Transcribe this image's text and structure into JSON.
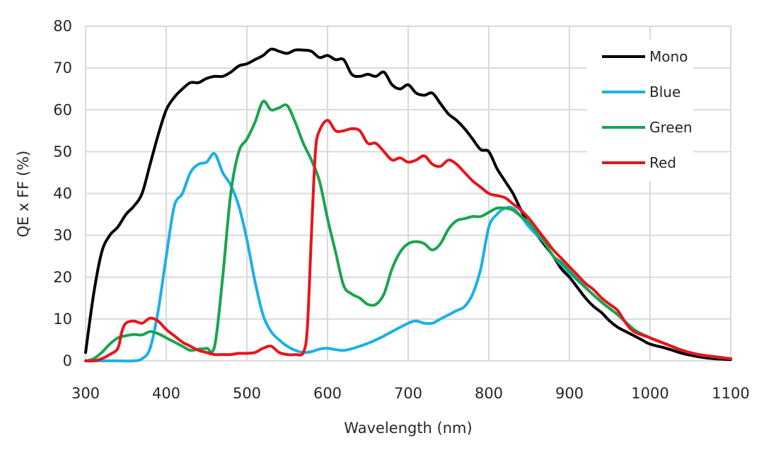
{
  "chart_data": {
    "type": "line",
    "title": "",
    "xlabel": "Wavelength (nm)",
    "ylabel": "QE x FF (%)",
    "xlim": [
      300,
      1100
    ],
    "ylim": [
      0,
      80
    ],
    "xticks": [
      300,
      400,
      500,
      600,
      700,
      800,
      900,
      1000,
      1100
    ],
    "yticks": [
      0,
      10,
      20,
      30,
      40,
      50,
      60,
      70,
      80
    ],
    "xtick_labels": [
      "300",
      "400",
      "500",
      "600",
      "700",
      "800",
      "900",
      "1000",
      "1100"
    ],
    "ytick_labels": [
      "0",
      "10",
      "20",
      "30",
      "40",
      "50",
      "60",
      "70",
      "80"
    ],
    "grid": true,
    "legend_position": "top-right",
    "series": [
      {
        "name": "Mono",
        "color": "#000000",
        "x": [
          300,
          310,
          320,
          330,
          340,
          350,
          360,
          370,
          380,
          390,
          400,
          410,
          420,
          430,
          440,
          450,
          460,
          470,
          480,
          490,
          500,
          510,
          520,
          530,
          540,
          550,
          560,
          570,
          580,
          590,
          600,
          610,
          620,
          630,
          640,
          650,
          660,
          670,
          680,
          690,
          700,
          710,
          720,
          730,
          740,
          750,
          760,
          770,
          780,
          790,
          800,
          810,
          820,
          830,
          840,
          850,
          860,
          870,
          880,
          890,
          900,
          910,
          920,
          930,
          940,
          950,
          960,
          970,
          980,
          990,
          1000,
          1020,
          1040,
          1060,
          1080,
          1100
        ],
        "y": [
          2,
          16,
          26,
          30,
          32,
          35,
          37,
          40,
          47,
          54,
          60,
          63,
          65,
          66.5,
          66.5,
          67.5,
          68,
          68,
          69,
          70.5,
          71,
          72,
          73,
          74.5,
          74,
          73.5,
          74.3,
          74.3,
          74,
          72.5,
          73,
          72,
          72,
          68.5,
          68,
          68.5,
          68,
          69,
          66,
          65,
          66,
          64,
          63.5,
          64,
          61.5,
          59,
          57.5,
          55.5,
          53,
          50.5,
          50,
          46,
          43,
          40,
          36,
          32.5,
          30,
          27.5,
          25,
          22,
          20,
          17.5,
          15,
          13,
          11.5,
          9.5,
          8,
          7,
          6,
          5,
          4,
          3,
          1.8,
          1,
          0.5,
          0.3
        ]
      },
      {
        "name": "Blue",
        "color": "#1cb0e8",
        "x": [
          300,
          320,
          340,
          360,
          370,
          380,
          390,
          400,
          410,
          420,
          430,
          440,
          450,
          460,
          470,
          480,
          490,
          500,
          510,
          520,
          530,
          540,
          550,
          560,
          570,
          580,
          590,
          600,
          620,
          640,
          660,
          680,
          700,
          710,
          720,
          730,
          740,
          750,
          760,
          770,
          780,
          790,
          800,
          810,
          820,
          830,
          840,
          850,
          860,
          870,
          880,
          890,
          900,
          920,
          940,
          960,
          980,
          1000,
          1020,
          1040,
          1060,
          1080,
          1100
        ],
        "y": [
          0,
          0,
          0,
          0,
          0.5,
          3,
          12,
          25,
          37,
          40,
          45,
          47,
          47.5,
          49.5,
          45,
          42,
          37,
          29,
          19,
          11,
          7,
          5,
          3.5,
          2.5,
          2,
          2.2,
          2.8,
          3,
          2.5,
          3.5,
          5,
          7,
          9,
          9.5,
          9,
          9,
          10,
          11,
          12,
          13,
          16,
          22,
          32,
          35,
          36.5,
          36.5,
          34.5,
          32,
          30,
          28,
          25,
          23,
          21,
          17.5,
          14,
          11,
          7.5,
          5.5,
          4,
          2.5,
          1.5,
          1,
          0.5
        ]
      },
      {
        "name": "Green",
        "color": "#1aa450",
        "x": [
          300,
          310,
          320,
          330,
          340,
          350,
          360,
          370,
          380,
          390,
          400,
          410,
          420,
          430,
          440,
          450,
          460,
          470,
          480,
          490,
          500,
          510,
          520,
          530,
          540,
          550,
          560,
          570,
          580,
          590,
          600,
          610,
          620,
          630,
          640,
          650,
          660,
          670,
          680,
          690,
          700,
          710,
          720,
          730,
          740,
          750,
          760,
          770,
          780,
          790,
          800,
          810,
          820,
          830,
          840,
          850,
          860,
          870,
          880,
          890,
          900,
          920,
          940,
          960,
          980,
          1000,
          1020,
          1040,
          1060,
          1080,
          1100
        ],
        "y": [
          0,
          0.5,
          2,
          4,
          5.5,
          6,
          6.3,
          6.2,
          7,
          6.5,
          5.5,
          4.5,
          3.5,
          2.5,
          2.8,
          3,
          3.5,
          20,
          40,
          50,
          53,
          57,
          62,
          60,
          60.5,
          61,
          57,
          52,
          48,
          43,
          34,
          26,
          18,
          16,
          15,
          13.5,
          13.5,
          16,
          22,
          26,
          28,
          28.5,
          28,
          26.5,
          28,
          31.5,
          33.5,
          34,
          34.5,
          34.5,
          35.5,
          36.5,
          36.5,
          36,
          34.5,
          33,
          30.5,
          28,
          25,
          23.5,
          21.5,
          17.5,
          14,
          11,
          7.5,
          5.5,
          4,
          2.5,
          1.5,
          1,
          0.5
        ]
      },
      {
        "name": "Red",
        "color": "#e8141c",
        "x": [
          300,
          310,
          320,
          330,
          340,
          345,
          350,
          360,
          370,
          380,
          390,
          400,
          410,
          420,
          430,
          440,
          450,
          460,
          470,
          480,
          490,
          500,
          510,
          520,
          530,
          540,
          550,
          560,
          570,
          575,
          580,
          585,
          590,
          600,
          610,
          620,
          630,
          640,
          650,
          660,
          670,
          680,
          690,
          700,
          710,
          720,
          730,
          740,
          750,
          760,
          770,
          780,
          790,
          800,
          810,
          820,
          830,
          840,
          850,
          860,
          870,
          880,
          890,
          900,
          910,
          920,
          930,
          940,
          950,
          960,
          970,
          980,
          1000,
          1020,
          1040,
          1060,
          1080,
          1100
        ],
        "y": [
          0,
          0,
          0.5,
          1.5,
          3,
          7,
          9,
          9.5,
          9,
          10.2,
          9.5,
          7.5,
          6,
          4.5,
          3.5,
          2.5,
          2,
          1.5,
          1.5,
          1.5,
          1.8,
          1.8,
          2,
          3,
          3.5,
          2,
          1.5,
          1.5,
          2,
          8,
          30,
          50,
          55,
          57.5,
          55,
          55,
          55.5,
          55,
          52,
          52,
          50,
          48,
          48.5,
          47.5,
          48,
          49,
          47,
          46.5,
          48,
          47,
          45,
          43,
          41.5,
          40,
          39.5,
          39,
          37.5,
          36,
          34,
          31.5,
          29,
          26.5,
          24.5,
          22.5,
          20.5,
          18.5,
          17,
          15,
          13.5,
          12,
          9,
          7,
          5.5,
          4,
          2.5,
          1.5,
          1,
          0.5
        ]
      }
    ]
  }
}
